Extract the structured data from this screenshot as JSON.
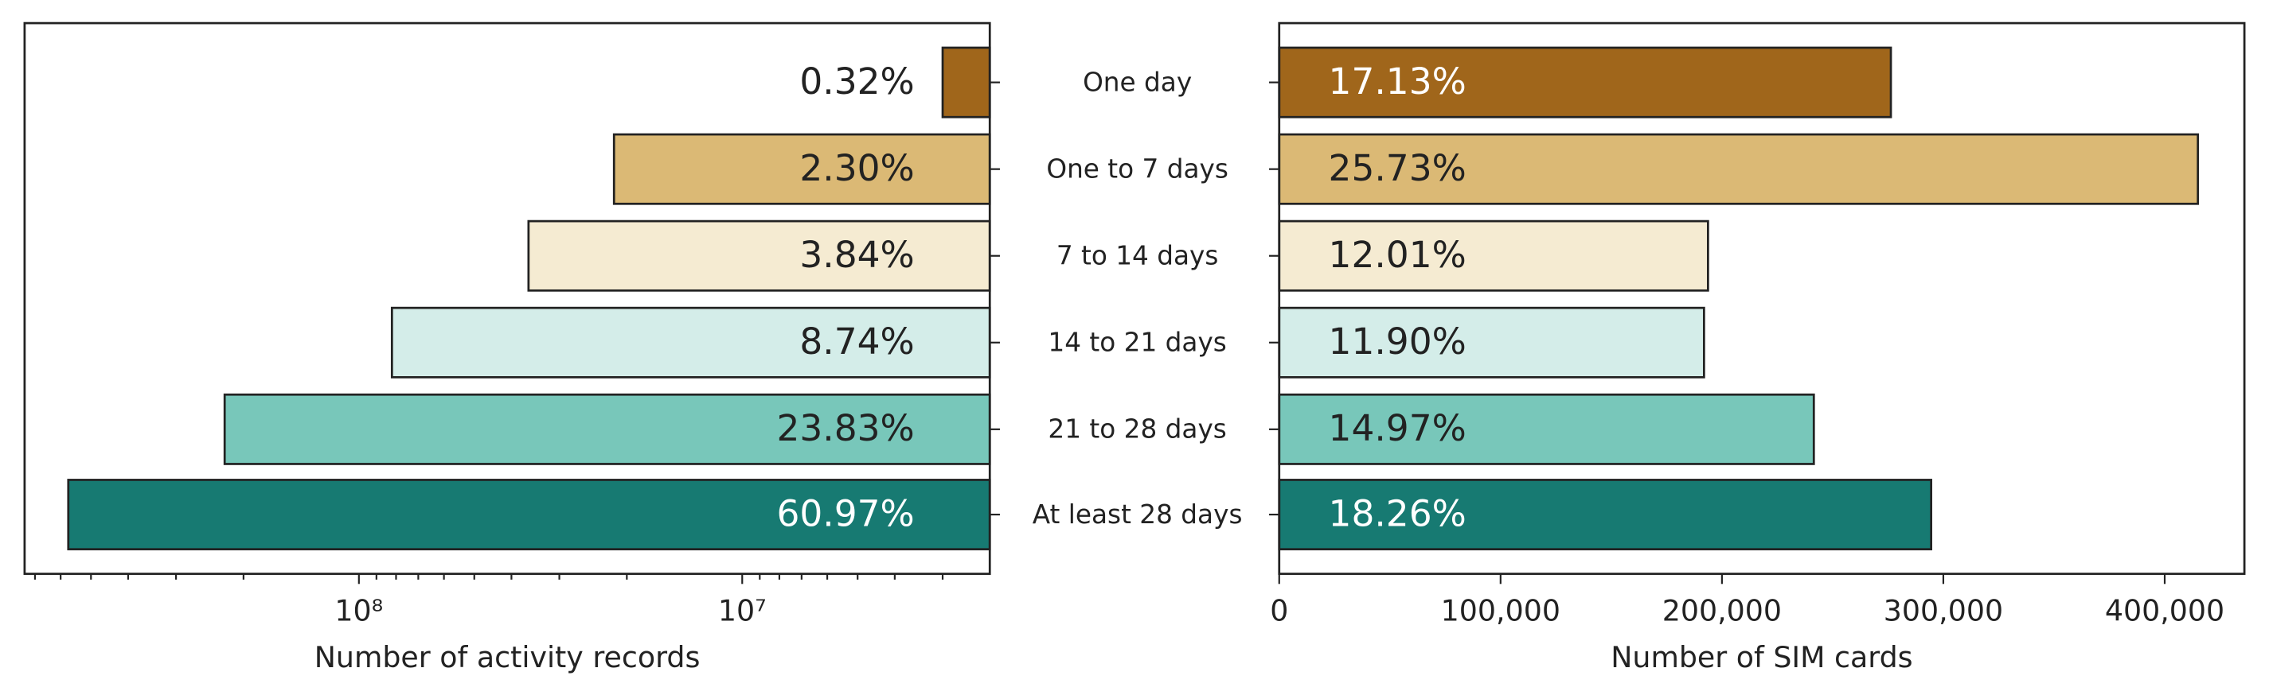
{
  "chart_data": [
    {
      "type": "bar",
      "orientation": "horizontal",
      "xscale": "log",
      "categories": [
        "One day",
        "One to 7 days",
        "7 to 14 days",
        "14 to 21 days",
        "21 to 28 days",
        "At least 28 days"
      ],
      "values": [
        3000000,
        21600000,
        36100000,
        82000000,
        224000000,
        573000000
      ],
      "share_labels": [
        "0.32%",
        "2.30%",
        "3.84%",
        "8.74%",
        "23.83%",
        "60.97%"
      ],
      "label_colors": [
        "#222222",
        "#222222",
        "#222222",
        "#222222",
        "#222222",
        "#ffffff"
      ],
      "colors": [
        "#a0661b",
        "#dbb975",
        "#f5ebd2",
        "#d4ede9",
        "#78c7ba",
        "#177a72"
      ],
      "xlabel": "Number of activity records",
      "xlim": [
        745000000,
        2260000
      ],
      "xticks": [
        {
          "value": 100000000,
          "label": "10⁸"
        },
        {
          "value": 10000000,
          "label": "10⁷"
        }
      ],
      "minor_xticks": [
        700000000,
        600000000,
        500000000,
        400000000,
        300000000,
        200000000,
        90000000,
        80000000,
        70000000,
        60000000,
        50000000,
        40000000,
        30000000,
        20000000,
        9000000,
        8000000,
        7000000,
        6000000,
        5000000,
        4000000,
        3000000
      ]
    },
    {
      "type": "bar",
      "orientation": "horizontal",
      "values": [
        276300,
        415000,
        193700,
        191900,
        241500,
        294500
      ],
      "share_labels": [
        "17.13%",
        "25.73%",
        "12.01%",
        "11.90%",
        "14.97%",
        "18.26%"
      ],
      "label_colors": [
        "#ffffff",
        "#222222",
        "#222222",
        "#222222",
        "#222222",
        "#ffffff"
      ],
      "colors": [
        "#a0661b",
        "#dbb975",
        "#f5ebd2",
        "#d4ede9",
        "#78c7ba",
        "#177a72"
      ],
      "xlabel": "Number of SIM cards",
      "xlim": [
        0,
        436000
      ],
      "xticks": [
        0,
        {
          "value": 100000,
          "label": "100,000"
        },
        {
          "value": 200000,
          "label": "200,000"
        },
        {
          "value": 300000,
          "label": "300,000"
        },
        {
          "value": 400000,
          "label": "400,000"
        }
      ]
    }
  ]
}
